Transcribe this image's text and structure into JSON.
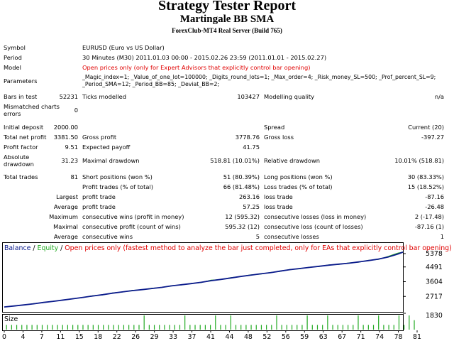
{
  "header": {
    "title": "Strategy Tester Report",
    "ea_name": "Martingale BB SMA",
    "server": "ForexClub-MT4 Real Server (Build 765)"
  },
  "info": {
    "symbol_label": "Symbol",
    "symbol_value": "EURUSD (Euro vs US Dollar)",
    "period_label": "Period",
    "period_value": "30 Minutes (M30) 2011.01.03 00:00 - 2015.02.26 23:59 (2011.01.01 - 2015.02.27)",
    "model_label": "Model",
    "model_value": "Open prices only (only for Expert Advisors that explicitly control bar opening)",
    "parameters_label": "Parameters",
    "parameters_line1": "_Magic_index=1; _Value_of_one_lot=100000; _Digits_round_lots=1; _Max_order=4; _Risk_money_SL=500; _Prof_percent_SL=9;",
    "parameters_line2": "_Period_SMA=12; _Period_BB=85; _Deviat_BB=2;"
  },
  "stats": {
    "bars_label": "Bars in test",
    "bars_value": "52231",
    "ticks_label": "Ticks modelled",
    "ticks_value": "103427",
    "quality_label": "Modelling quality",
    "quality_value": "n/a",
    "mismatched_label_1": "Mismatched charts",
    "mismatched_label_2": "errors",
    "mismatched_value": "0",
    "initial_deposit_label": "Initial deposit",
    "initial_deposit_value": "2000.00",
    "spread_label": "Spread",
    "spread_value": "Current (20)",
    "net_profit_label": "Total net profit",
    "net_profit_value": "3381.50",
    "gross_profit_label": "Gross profit",
    "gross_profit_value": "3778.76",
    "gross_loss_label": "Gross loss",
    "gross_loss_value": "-397.27",
    "profit_factor_label": "Profit factor",
    "profit_factor_value": "9.51",
    "expected_payoff_label": "Expected payoff",
    "expected_payoff_value": "41.75",
    "abs_dd_label_1": "Absolute",
    "abs_dd_label_2": "drawdown",
    "abs_dd_value": "31.23",
    "max_dd_label": "Maximal drawdown",
    "max_dd_value": "518.81 (10.01%)",
    "rel_dd_label": "Relative drawdown",
    "rel_dd_value": "10.01% (518.81)",
    "total_trades_label": "Total trades",
    "total_trades_value": "81",
    "short_label": "Short positions (won %)",
    "short_value": "51 (80.39%)",
    "long_label": "Long positions (won %)",
    "long_value": "30 (83.33%)",
    "profit_trades_label": "Profit trades (% of total)",
    "profit_trades_value": "66 (81.48%)",
    "loss_trades_label": "Loss trades (% of total)",
    "loss_trades_value": "15 (18.52%)",
    "largest_label": "Largest",
    "largest_profit_label": "profit trade",
    "largest_profit_value": "263.16",
    "largest_loss_label": "loss trade",
    "largest_loss_value": "-87.16",
    "average_label": "Average",
    "average_profit_label": "profit trade",
    "average_profit_value": "57.25",
    "average_loss_label": "loss trade",
    "average_loss_value": "-26.48",
    "maximum_label": "Maximum",
    "max_cons_wins_label": "consecutive wins (profit in money)",
    "max_cons_wins_value": "12 (595.32)",
    "max_cons_losses_label": "consecutive losses (loss in money)",
    "max_cons_losses_value": "2 (-17.48)",
    "maximal_label": "Maximal",
    "maximal_cons_profit_label": "consecutive profit (count of wins)",
    "maximal_cons_profit_value": "595.32 (12)",
    "maximal_cons_loss_label": "consecutive loss (count of losses)",
    "maximal_cons_loss_value": "-87.16 (1)",
    "average2_label": "Average",
    "avg_cons_wins_label": "consecutive wins",
    "avg_cons_wins_value": "5",
    "avg_cons_losses_label": "consecutive losses",
    "avg_cons_losses_value": "1"
  },
  "chart": {
    "legend_balance": "Balance",
    "legend_sep1": " / ",
    "legend_equity": "Equity",
    "legend_sep2": " / ",
    "legend_note": "Open prices only (fastest method to analyze the bar just completed, only for EAs that explicitly control bar opening)",
    "size_label": "Size",
    "colors": {
      "balance": "#0b1b8c",
      "equity": "#22aa22",
      "size_bars": "#22aa22",
      "note": "#e00000",
      "frame": "#000000"
    },
    "chart_data": {
      "type": "line",
      "ylim": [
        1830,
        5378
      ],
      "y_ticks": [
        "5378",
        "4491",
        "3604",
        "2717",
        "1830"
      ],
      "x_ticks": [
        "0",
        "4",
        "7",
        "11",
        "15",
        "18",
        "22",
        "26",
        "29",
        "33",
        "37",
        "41",
        "44",
        "48",
        "52",
        "56",
        "59",
        "63",
        "67",
        "71",
        "74",
        "78",
        "81"
      ],
      "xlim": [
        0,
        81
      ],
      "series": [
        {
          "name": "Balance",
          "x": [
            0,
            2,
            4,
            6,
            8,
            10,
            12,
            14,
            16,
            18,
            20,
            22,
            24,
            26,
            28,
            30,
            32,
            34,
            36,
            38,
            40,
            42,
            44,
            46,
            48,
            50,
            52,
            54,
            56,
            58,
            60,
            62,
            64,
            66,
            68,
            70,
            72,
            74,
            76,
            78,
            80,
            81
          ],
          "values": [
            2000,
            2060,
            2130,
            2200,
            2280,
            2350,
            2430,
            2510,
            2590,
            2680,
            2760,
            2850,
            2930,
            3010,
            3070,
            3140,
            3210,
            3300,
            3370,
            3440,
            3520,
            3620,
            3700,
            3790,
            3880,
            3960,
            4040,
            4110,
            4210,
            4300,
            4370,
            4440,
            4510,
            4580,
            4640,
            4700,
            4780,
            4860,
            4950,
            5080,
            5270,
            5381
          ]
        },
        {
          "name": "Equity",
          "x": [
            0,
            2,
            4,
            6,
            8,
            10,
            12,
            14,
            16,
            18,
            20,
            22,
            24,
            26,
            28,
            30,
            32,
            34,
            36,
            38,
            40,
            42,
            44,
            46,
            48,
            50,
            52,
            54,
            56,
            58,
            60,
            62,
            64,
            66,
            68,
            70,
            72,
            74,
            76,
            78,
            80,
            81
          ],
          "values": [
            2000,
            2070,
            2120,
            2210,
            2270,
            2360,
            2420,
            2520,
            2580,
            2700,
            2740,
            2870,
            2920,
            3030,
            3060,
            3160,
            3200,
            3320,
            3360,
            3460,
            3500,
            3660,
            3690,
            3810,
            3870,
            3980,
            4020,
            4130,
            4190,
            4320,
            4350,
            4460,
            4490,
            4600,
            4620,
            4720,
            4760,
            4880,
            4930,
            5120,
            5330,
            5381
          ]
        },
        {
          "name": "Size",
          "x": [
            1,
            2,
            3,
            4,
            5,
            6,
            7,
            8,
            9,
            10,
            11,
            12,
            13,
            14,
            15,
            16,
            17,
            18,
            19,
            20,
            21,
            22,
            23,
            24,
            25,
            26,
            27,
            28,
            29,
            30,
            31,
            32,
            33,
            34,
            35,
            36,
            37,
            38,
            39,
            40,
            41,
            42,
            43,
            44,
            45,
            46,
            47,
            48,
            49,
            50,
            51,
            52,
            53,
            54,
            55,
            56,
            57,
            58,
            59,
            60,
            61,
            62,
            63,
            64,
            65,
            66,
            67,
            68,
            69,
            70,
            71,
            72,
            73,
            74,
            75,
            76,
            77,
            78,
            79,
            80,
            81
          ],
          "values": [
            0.3,
            0.3,
            0.3,
            0.3,
            0.3,
            0.3,
            0.3,
            0.3,
            0.3,
            0.3,
            0.3,
            0.3,
            0.3,
            0.3,
            0.3,
            0.3,
            0.3,
            0.3,
            0.3,
            0.3,
            0.3,
            0.3,
            0.3,
            0.3,
            0.3,
            0.3,
            0.3,
            0.9,
            0.3,
            0.3,
            0.3,
            0.3,
            0.3,
            0.3,
            0.3,
            0.9,
            0.3,
            0.3,
            0.3,
            0.3,
            0.3,
            0.9,
            0.3,
            0.3,
            0.9,
            0.3,
            0.3,
            0.3,
            0.3,
            0.3,
            0.3,
            0.3,
            0.3,
            0.9,
            0.3,
            0.3,
            0.3,
            0.3,
            0.3,
            0.9,
            0.3,
            0.3,
            0.3,
            0.9,
            0.3,
            0.3,
            0.3,
            0.3,
            0.3,
            0.9,
            0.3,
            0.3,
            0.3,
            0.9,
            0.3,
            0.3,
            0.3,
            0.9,
            0.3,
            0.9,
            0.6
          ]
        }
      ]
    }
  }
}
